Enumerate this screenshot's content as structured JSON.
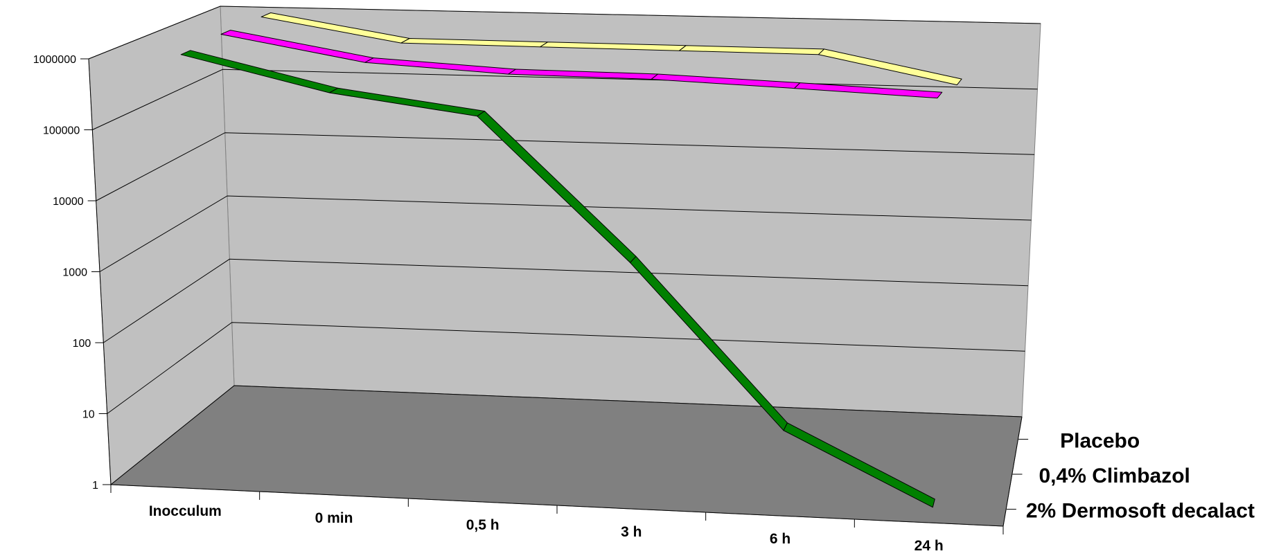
{
  "chart_data": {
    "type": "line",
    "title": "",
    "xlabel": "",
    "ylabel": "",
    "y_scale": "log",
    "ylim": [
      1,
      1000000
    ],
    "y_ticks": [
      "1",
      "10",
      "100",
      "1000",
      "10000",
      "100000",
      "1000000"
    ],
    "categories": [
      "Inocculum",
      "0 min",
      "0,5 h",
      "3 h",
      "6 h",
      "24 h"
    ],
    "grid": true,
    "legend": "depth-axis-labels",
    "series": [
      {
        "name": "Placebo",
        "color": "#ffff99",
        "values": [
          1100000,
          500000,
          500000,
          500000,
          500000,
          200000
        ]
      },
      {
        "name": "0,4% Climbazol",
        "color": "#ff00ff",
        "values": [
          1100000,
          500000,
          400000,
          400000,
          350000,
          300000
        ]
      },
      {
        "name": "2% Dermosoft decalact",
        "color": "#008000",
        "values": [
          1000000,
          350000,
          200000,
          2000,
          10,
          1
        ]
      }
    ],
    "colors": {
      "wall": "#c0c0c0",
      "floor": "#808080"
    }
  }
}
